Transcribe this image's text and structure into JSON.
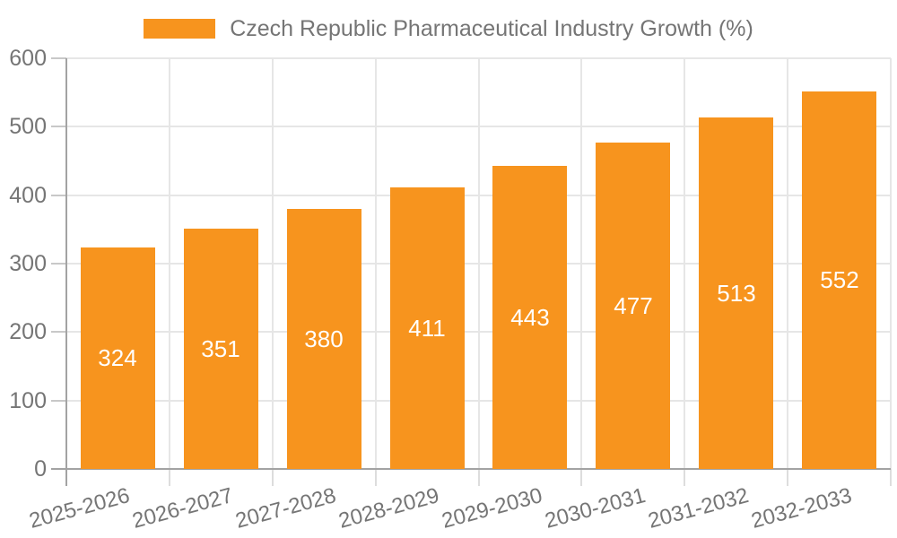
{
  "legend": {
    "label": "Czech Republic Pharmaceutical Industry Growth (%)",
    "swatch_color": "#F7941E"
  },
  "colors": {
    "bar": "#F7941E",
    "bar_label": "#FFFFFF",
    "grid_line": "#E6E6E6",
    "axis_line": "#A3A3A3",
    "y_tick_line": "#C8C8C8",
    "x_tick_line": "#DDDDDD",
    "tick_text": "#757575",
    "background": "#FFFFFF"
  },
  "chart_data": {
    "type": "bar",
    "title": "Czech Republic Pharmaceutical Industry Growth (%)",
    "categories": [
      "2025-2026",
      "2026-2027",
      "2027-2028",
      "2028-2029",
      "2029-2030",
      "2030-2031",
      "2031-2032",
      "2032-2033"
    ],
    "values": [
      324,
      351,
      380,
      411,
      443,
      477,
      513,
      552
    ],
    "series_name": "Czech Republic Pharmaceutical Industry Growth (%)",
    "xlabel": "",
    "ylabel": "",
    "ylim": [
      0,
      600
    ],
    "yticks": [
      0,
      100,
      200,
      300,
      400,
      500,
      600
    ],
    "grid": true,
    "legend_position": "top",
    "value_label_position": "inside-center",
    "x_tick_rotation_deg": -15
  }
}
